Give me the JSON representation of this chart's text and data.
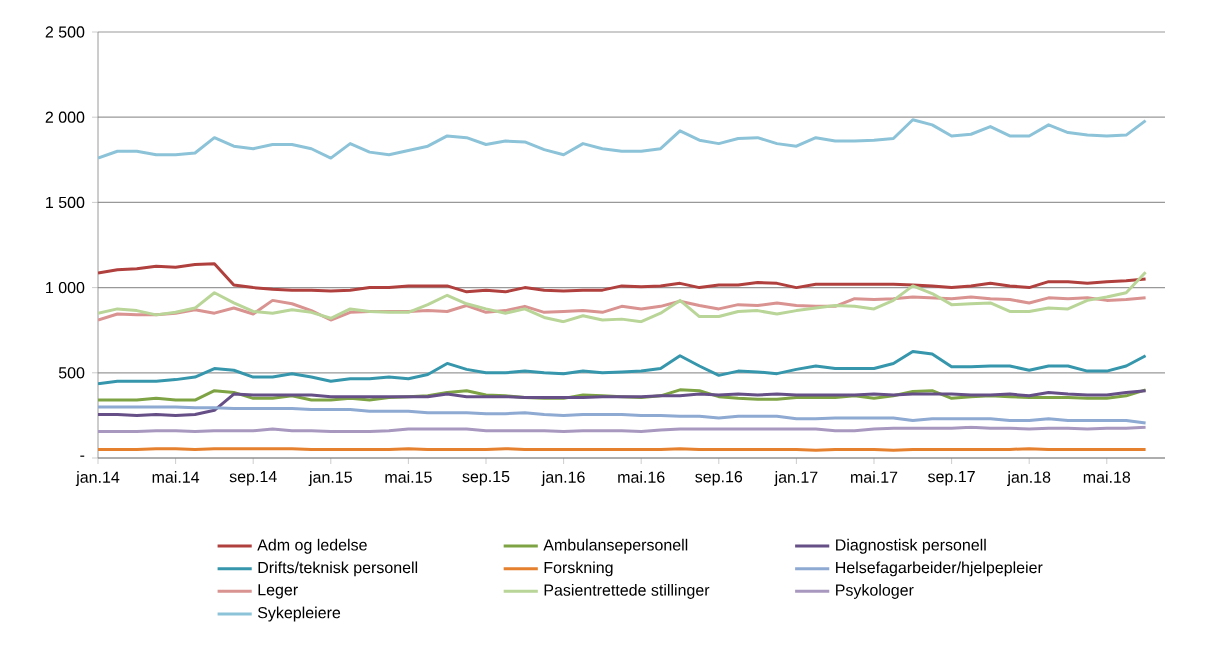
{
  "chart_data": {
    "type": "line",
    "categories": [
      "jan.14",
      null,
      null,
      null,
      "mai.14",
      null,
      null,
      null,
      "sep.14",
      null,
      null,
      null,
      "jan.15",
      null,
      null,
      null,
      "mai.15",
      null,
      null,
      null,
      "sep.15",
      null,
      null,
      null,
      "jan.16",
      null,
      null,
      null,
      "mai.16",
      null,
      null,
      null,
      "sep.16",
      null,
      null,
      null,
      "jan.17",
      null,
      null,
      null,
      "mai.17",
      null,
      null,
      null,
      "sep.17",
      null,
      null,
      null,
      "jan.18",
      null,
      null,
      null,
      "mai.18",
      null,
      null
    ],
    "ylim": [
      0,
      2500
    ],
    "yticks": [
      {
        "value": 0,
        "label": "-"
      },
      500,
      {
        "value": 1000,
        "label": "1 000"
      },
      {
        "value": 1500,
        "label": "1 500"
      },
      {
        "value": 2000,
        "label": "2 000"
      },
      {
        "value": 2500,
        "label": "2 500"
      }
    ],
    "grid": "y",
    "legend": "bottom",
    "marker": "none",
    "line_style": "solid",
    "series": [
      {
        "name": "Adm og ledelse",
        "color": "#b0403d",
        "values": [
          1085,
          1105,
          1110,
          1125,
          1120,
          1135,
          1140,
          1015,
          1000,
          990,
          985,
          985,
          980,
          985,
          1000,
          1000,
          1010,
          1010,
          1010,
          975,
          985,
          975,
          1000,
          985,
          980,
          985,
          985,
          1010,
          1005,
          1010,
          1025,
          1000,
          1015,
          1015,
          1030,
          1025,
          1000,
          1020,
          1020,
          1020,
          1020,
          1020,
          1015,
          1010,
          1000,
          1010,
          1025,
          1010,
          1000,
          1035,
          1035,
          1025,
          1035,
          1040,
          1050
        ]
      },
      {
        "name": "Ambulansepersonell",
        "color": "#7ea344",
        "values": [
          340,
          340,
          340,
          350,
          340,
          340,
          395,
          385,
          350,
          350,
          365,
          340,
          340,
          350,
          340,
          355,
          360,
          365,
          385,
          395,
          370,
          365,
          355,
          350,
          350,
          370,
          365,
          360,
          355,
          365,
          400,
          395,
          360,
          350,
          345,
          345,
          355,
          355,
          355,
          365,
          350,
          365,
          390,
          395,
          350,
          360,
          365,
          360,
          355,
          355,
          355,
          350,
          350,
          365,
          400
        ]
      },
      {
        "name": "Diagnostisk personell",
        "color": "#654f86",
        "values": [
          255,
          255,
          250,
          255,
          250,
          255,
          280,
          375,
          370,
          370,
          370,
          370,
          360,
          360,
          360,
          360,
          360,
          360,
          375,
          360,
          360,
          360,
          355,
          355,
          355,
          355,
          360,
          360,
          360,
          365,
          365,
          375,
          370,
          375,
          370,
          375,
          370,
          370,
          370,
          370,
          375,
          370,
          375,
          375,
          375,
          370,
          370,
          375,
          365,
          385,
          375,
          370,
          370,
          385,
          395
        ]
      },
      {
        "name": "Drifts/teknisk personell",
        "color": "#3696ac",
        "values": [
          435,
          450,
          450,
          450,
          460,
          475,
          525,
          515,
          475,
          475,
          495,
          475,
          450,
          465,
          465,
          475,
          465,
          490,
          555,
          520,
          500,
          500,
          510,
          500,
          495,
          510,
          500,
          505,
          510,
          525,
          600,
          540,
          485,
          510,
          505,
          495,
          520,
          540,
          525,
          525,
          525,
          555,
          625,
          610,
          535,
          535,
          540,
          540,
          515,
          540,
          540,
          510,
          510,
          540,
          600
        ]
      },
      {
        "name": "Forskning",
        "color": "#e5802f",
        "values": [
          50,
          50,
          50,
          55,
          55,
          50,
          55,
          55,
          55,
          55,
          55,
          50,
          50,
          50,
          50,
          50,
          55,
          50,
          50,
          50,
          50,
          55,
          50,
          50,
          50,
          50,
          50,
          50,
          50,
          50,
          55,
          50,
          50,
          50,
          50,
          50,
          50,
          45,
          50,
          50,
          50,
          45,
          50,
          50,
          50,
          50,
          50,
          50,
          55,
          50,
          50,
          50,
          50,
          50,
          50
        ]
      },
      {
        "name": "Helsefagarbeider/hjelpepleier",
        "color": "#8ea9d2",
        "values": [
          300,
          300,
          300,
          300,
          300,
          295,
          295,
          290,
          290,
          290,
          290,
          285,
          285,
          285,
          275,
          275,
          275,
          265,
          265,
          265,
          260,
          260,
          265,
          255,
          250,
          255,
          255,
          255,
          250,
          250,
          245,
          245,
          235,
          245,
          245,
          245,
          230,
          230,
          235,
          235,
          235,
          235,
          220,
          230,
          230,
          230,
          230,
          220,
          220,
          230,
          220,
          220,
          220,
          220,
          205
        ]
      },
      {
        "name": "Leger",
        "color": "#d99390",
        "values": [
          810,
          845,
          840,
          840,
          850,
          870,
          850,
          880,
          845,
          925,
          905,
          865,
          810,
          855,
          860,
          860,
          860,
          865,
          860,
          895,
          855,
          865,
          890,
          855,
          860,
          865,
          855,
          890,
          875,
          890,
          920,
          895,
          875,
          900,
          895,
          910,
          895,
          890,
          890,
          935,
          930,
          935,
          945,
          940,
          935,
          945,
          935,
          930,
          910,
          940,
          935,
          940,
          925,
          930,
          940
        ]
      },
      {
        "name": "Pasientrettede stillinger",
        "color": "#b9d597",
        "values": [
          850,
          875,
          865,
          840,
          855,
          880,
          970,
          910,
          860,
          850,
          870,
          855,
          820,
          875,
          860,
          855,
          855,
          900,
          955,
          905,
          875,
          850,
          875,
          825,
          800,
          835,
          810,
          815,
          800,
          850,
          925,
          830,
          830,
          860,
          865,
          845,
          865,
          880,
          895,
          890,
          875,
          925,
          1010,
          965,
          900,
          905,
          910,
          860,
          860,
          880,
          875,
          925,
          945,
          970,
          1090
        ]
      },
      {
        "name": "Psykologer",
        "color": "#a898bf",
        "values": [
          155,
          155,
          155,
          160,
          160,
          155,
          160,
          160,
          160,
          170,
          160,
          160,
          155,
          155,
          155,
          160,
          170,
          170,
          170,
          170,
          160,
          160,
          160,
          160,
          155,
          160,
          160,
          160,
          155,
          165,
          170,
          170,
          170,
          170,
          170,
          170,
          170,
          170,
          160,
          160,
          170,
          175,
          175,
          175,
          175,
          180,
          175,
          175,
          170,
          175,
          175,
          170,
          175,
          175,
          180
        ]
      },
      {
        "name": "Sykepleiere",
        "color": "#8cc3d8",
        "values": [
          1760,
          1800,
          1800,
          1780,
          1780,
          1790,
          1880,
          1830,
          1815,
          1840,
          1840,
          1815,
          1760,
          1845,
          1795,
          1780,
          1805,
          1830,
          1890,
          1880,
          1840,
          1860,
          1855,
          1810,
          1780,
          1845,
          1815,
          1800,
          1800,
          1815,
          1920,
          1865,
          1845,
          1875,
          1880,
          1845,
          1830,
          1880,
          1860,
          1860,
          1865,
          1875,
          1985,
          1955,
          1890,
          1900,
          1945,
          1890,
          1890,
          1955,
          1910,
          1895,
          1890,
          1895,
          1980
        ]
      }
    ]
  }
}
